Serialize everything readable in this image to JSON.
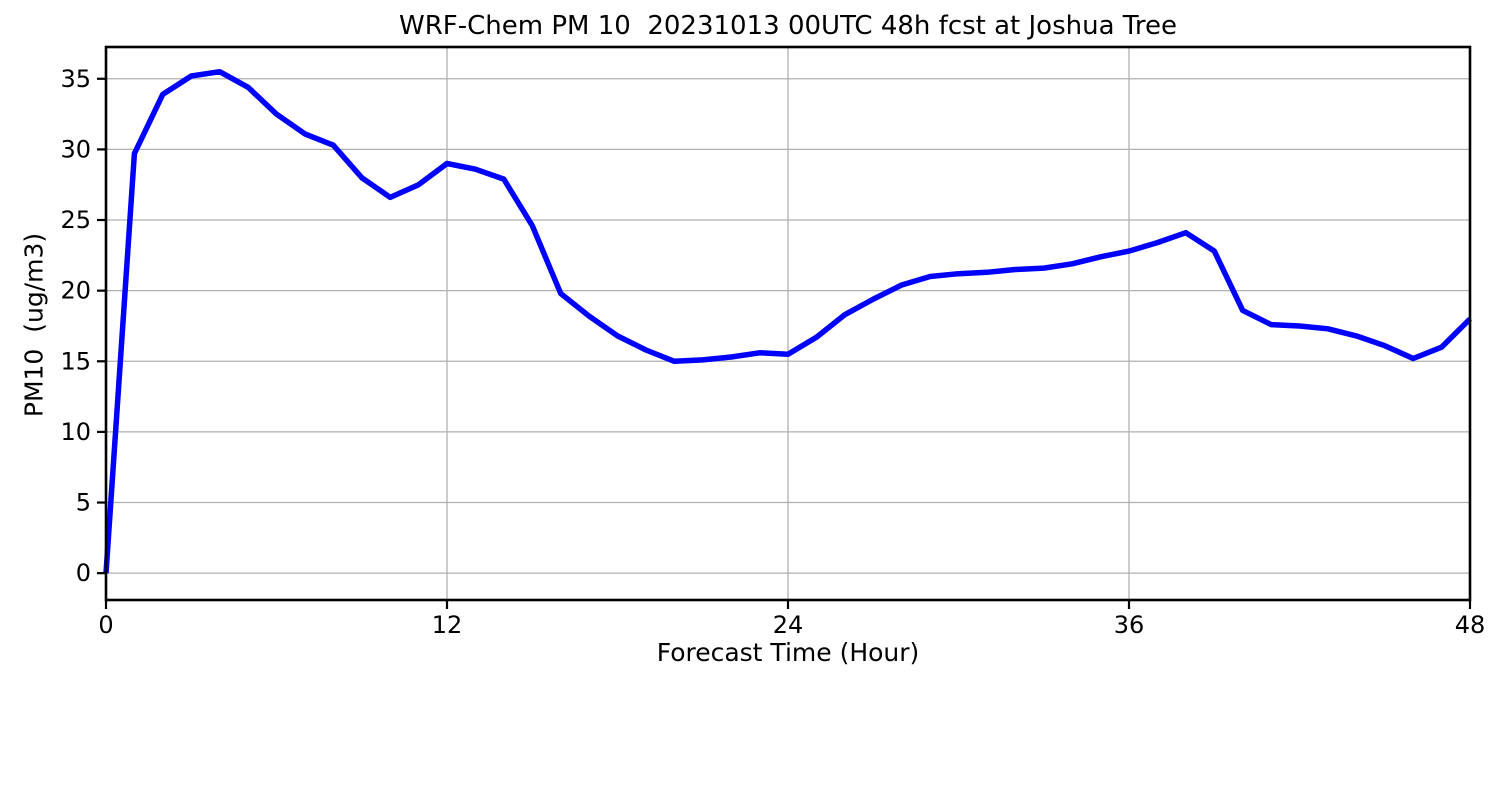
{
  "chart_data": {
    "type": "line",
    "title": "WRF-Chem PM 10  20231013 00UTC 48h fcst at Joshua Tree",
    "xlabel": "Forecast Time (Hour)",
    "ylabel": "PM10  (ug/m3)",
    "x": [
      0,
      1,
      2,
      3,
      4,
      5,
      6,
      7,
      8,
      9,
      10,
      11,
      12,
      13,
      14,
      15,
      16,
      17,
      18,
      19,
      20,
      21,
      22,
      23,
      24,
      25,
      26,
      27,
      28,
      29,
      30,
      31,
      32,
      33,
      34,
      35,
      36,
      37,
      38,
      39,
      40,
      41,
      42,
      43,
      44,
      45,
      46,
      47,
      48
    ],
    "series": [
      {
        "name": "PM10 forecast",
        "color": "#0000ff",
        "values": [
          0.0,
          29.7,
          33.9,
          35.2,
          35.5,
          34.4,
          32.5,
          31.1,
          30.3,
          28.0,
          26.6,
          27.5,
          29.0,
          28.6,
          27.9,
          24.6,
          19.8,
          18.2,
          16.8,
          15.8,
          15.0,
          15.1,
          15.3,
          15.6,
          15.5,
          16.7,
          18.3,
          19.4,
          20.4,
          21.0,
          21.2,
          21.3,
          21.5,
          21.6,
          21.9,
          22.4,
          22.8,
          23.4,
          24.1,
          22.8,
          18.6,
          17.6,
          17.5,
          17.3,
          16.8,
          16.1,
          15.2,
          16.0,
          18.0
        ]
      }
    ],
    "xlim": [
      0,
      48
    ],
    "ylim": [
      -1.9,
      37.25
    ],
    "xticks": [
      0,
      12,
      24,
      36,
      48
    ],
    "yticks": [
      0,
      5,
      10,
      15,
      20,
      25,
      30,
      35
    ],
    "grid": true,
    "legend": "none"
  },
  "colors": {
    "line": "#0000ff",
    "grid": "#b0b0b0",
    "spine": "#000000",
    "text": "#000000",
    "background": "#ffffff"
  }
}
